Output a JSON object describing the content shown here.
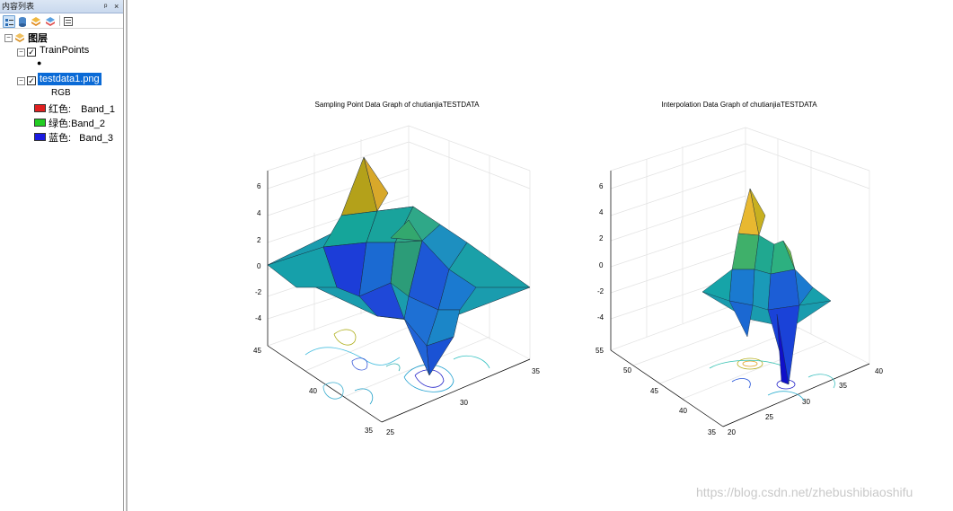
{
  "toc": {
    "title": "内容列表",
    "pin_glyph": "ᵖ",
    "close_glyph": "×",
    "toolbar_icons": [
      "list-by-drawing-order-icon",
      "list-by-source-icon",
      "list-by-visibility-icon",
      "list-by-selection-icon",
      "options-icon"
    ],
    "root_label": "图层",
    "layers": [
      {
        "label": "TrainPoints",
        "checked": true,
        "symbol": "●"
      },
      {
        "label": "testdata1.png",
        "checked": true,
        "selected": true,
        "renderer": "RGB",
        "bands": [
          {
            "channel": "红色:",
            "band": "Band_1",
            "color": "#e02020"
          },
          {
            "channel": "绿色:",
            "band": "Band_2",
            "color": "#22cc22"
          },
          {
            "channel": "蓝色:",
            "band": "Band_3",
            "color": "#1a1ae0"
          }
        ]
      }
    ]
  },
  "chart_data": [
    {
      "type": "surface3d",
      "title": "Sampling Point Data Graph of chutianjiaTESTDATA",
      "z_ticks": [
        "6",
        "4",
        "2",
        "0",
        "-2",
        "-4"
      ],
      "zlim": [
        -5,
        7
      ],
      "y_ticks": [
        "45",
        "40",
        "35"
      ],
      "x_ticks": [
        "25",
        "30",
        "35"
      ],
      "colormap": "parula",
      "peak_z": 6.5,
      "min_z": -4.5
    },
    {
      "type": "surface3d",
      "title": "Interpolation Data Graph of chutianjiaTESTDATA",
      "z_ticks": [
        "6",
        "4",
        "2",
        "0",
        "-2",
        "-4"
      ],
      "zlim": [
        -5,
        7
      ],
      "y_ticks": [
        "55",
        "50",
        "45",
        "40",
        "35"
      ],
      "x_ticks": [
        "20",
        "25",
        "30",
        "35",
        "40"
      ],
      "colormap": "parula",
      "peak_z": 5.8,
      "min_z": -4.3
    }
  ],
  "watermark": "https://blog.csdn.net/zhebushibiaoshifu"
}
